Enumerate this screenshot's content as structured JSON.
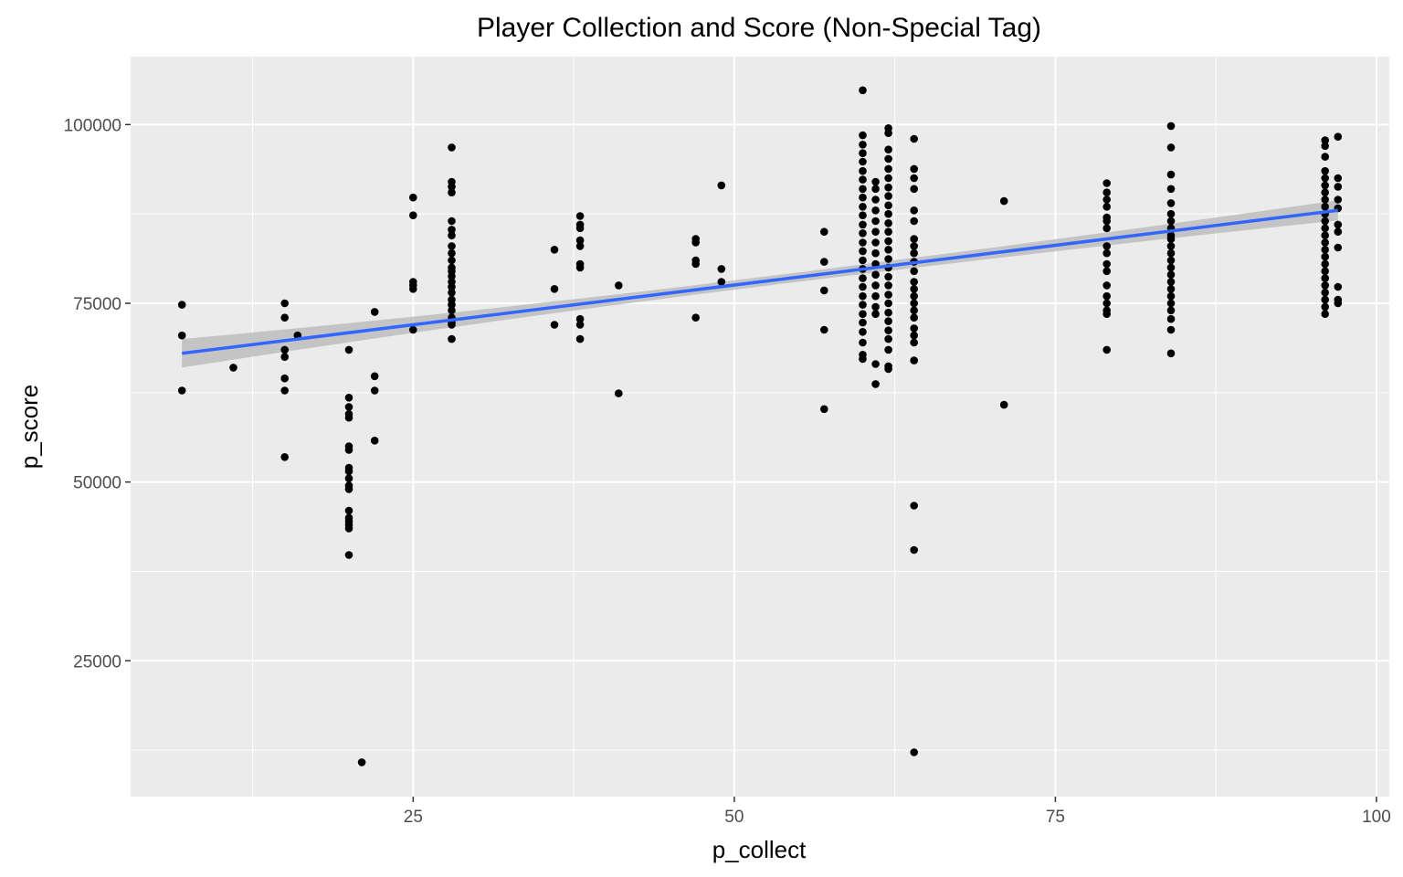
{
  "chart_data": {
    "type": "scatter",
    "title": "Player Collection and Score (Non-Special Tag)",
    "xlabel": "p_collect",
    "ylabel": "p_score",
    "xlim": [
      3,
      101
    ],
    "ylim": [
      6000,
      109500
    ],
    "x_ticks": [
      25,
      50,
      75,
      100
    ],
    "x_tick_labels": [
      "25",
      "50",
      "75",
      "100"
    ],
    "x_minor_ticks": [
      12.5,
      37.5,
      62.5,
      87.5
    ],
    "y_ticks": [
      25000,
      50000,
      75000,
      100000
    ],
    "y_tick_labels": [
      "25000",
      "50000",
      "75000",
      "100000"
    ],
    "y_minor_ticks": [
      12500,
      37500,
      62500,
      87500
    ],
    "grid": true,
    "panel_color": "#ebebeb",
    "grid_color": "#ffffff",
    "point_color": "#000000",
    "trend": {
      "method": "linear fit",
      "x": [
        7,
        97
      ],
      "y": [
        68000,
        88000
      ],
      "color": "#3366ff",
      "band_color": "#bdbdbd",
      "band_halfwidth": [
        2000,
        1400
      ]
    },
    "points": [
      [
        7,
        74800
      ],
      [
        7,
        70500
      ],
      [
        7,
        62800
      ],
      [
        11,
        66000
      ],
      [
        15,
        75000
      ],
      [
        15,
        73000
      ],
      [
        15,
        68500
      ],
      [
        15,
        67500
      ],
      [
        15,
        64500
      ],
      [
        15,
        62800
      ],
      [
        15,
        53500
      ],
      [
        16,
        70500
      ],
      [
        20,
        68500
      ],
      [
        20,
        61800
      ],
      [
        20,
        60500
      ],
      [
        20,
        59500
      ],
      [
        20,
        59000
      ],
      [
        20,
        55000
      ],
      [
        20,
        54500
      ],
      [
        20,
        52000
      ],
      [
        20,
        51500
      ],
      [
        20,
        50500
      ],
      [
        20,
        49500
      ],
      [
        20,
        49000
      ],
      [
        20,
        46000
      ],
      [
        20,
        45000
      ],
      [
        20,
        44500
      ],
      [
        20,
        44000
      ],
      [
        20,
        43500
      ],
      [
        20,
        39800
      ],
      [
        21,
        10800
      ],
      [
        22,
        73800
      ],
      [
        22,
        64800
      ],
      [
        22,
        62800
      ],
      [
        22,
        55800
      ],
      [
        25,
        89800
      ],
      [
        25,
        87300
      ],
      [
        25,
        78000
      ],
      [
        25,
        77500
      ],
      [
        25,
        77000
      ],
      [
        25,
        71300
      ],
      [
        28,
        96800
      ],
      [
        28,
        92000
      ],
      [
        28,
        91300
      ],
      [
        28,
        90500
      ],
      [
        28,
        86500
      ],
      [
        28,
        85300
      ],
      [
        28,
        84500
      ],
      [
        28,
        83000
      ],
      [
        28,
        82000
      ],
      [
        28,
        81000
      ],
      [
        28,
        80000
      ],
      [
        28,
        79500
      ],
      [
        28,
        78800
      ],
      [
        28,
        78000
      ],
      [
        28,
        77300
      ],
      [
        28,
        76500
      ],
      [
        28,
        75500
      ],
      [
        28,
        74800
      ],
      [
        28,
        74000
      ],
      [
        28,
        73000
      ],
      [
        28,
        72300
      ],
      [
        28,
        72000
      ],
      [
        28,
        70000
      ],
      [
        36,
        82500
      ],
      [
        36,
        77000
      ],
      [
        36,
        72000
      ],
      [
        38,
        87200
      ],
      [
        38,
        86000
      ],
      [
        38,
        85500
      ],
      [
        38,
        83800
      ],
      [
        38,
        83000
      ],
      [
        38,
        80500
      ],
      [
        38,
        80000
      ],
      [
        38,
        72800
      ],
      [
        38,
        72000
      ],
      [
        38,
        70000
      ],
      [
        41,
        77500
      ],
      [
        41,
        62400
      ],
      [
        47,
        84000
      ],
      [
        47,
        83500
      ],
      [
        47,
        81000
      ],
      [
        47,
        80500
      ],
      [
        47,
        73000
      ],
      [
        49,
        91500
      ],
      [
        49,
        79800
      ],
      [
        49,
        78000
      ],
      [
        57,
        85000
      ],
      [
        57,
        80800
      ],
      [
        57,
        76800
      ],
      [
        57,
        71300
      ],
      [
        57,
        60200
      ],
      [
        60,
        104800
      ],
      [
        60,
        98500
      ],
      [
        60,
        97200
      ],
      [
        60,
        96000
      ],
      [
        60,
        94800
      ],
      [
        60,
        93500
      ],
      [
        60,
        92300
      ],
      [
        60,
        91000
      ],
      [
        60,
        89800
      ],
      [
        60,
        88500
      ],
      [
        60,
        87300
      ],
      [
        60,
        86000
      ],
      [
        60,
        84800
      ],
      [
        60,
        83500
      ],
      [
        60,
        82300
      ],
      [
        60,
        81000
      ],
      [
        60,
        79800
      ],
      [
        60,
        78500
      ],
      [
        60,
        77300
      ],
      [
        60,
        76000
      ],
      [
        60,
        74800
      ],
      [
        60,
        73500
      ],
      [
        60,
        72300
      ],
      [
        60,
        71000
      ],
      [
        60,
        69500
      ],
      [
        60,
        67800
      ],
      [
        60,
        67200
      ],
      [
        61,
        92000
      ],
      [
        61,
        91000
      ],
      [
        61,
        89500
      ],
      [
        61,
        88000
      ],
      [
        61,
        86500
      ],
      [
        61,
        85000
      ],
      [
        61,
        83500
      ],
      [
        61,
        82000
      ],
      [
        61,
        80500
      ],
      [
        61,
        79000
      ],
      [
        61,
        77500
      ],
      [
        61,
        76000
      ],
      [
        61,
        74500
      ],
      [
        61,
        73500
      ],
      [
        61,
        66500
      ],
      [
        61,
        63700
      ],
      [
        62,
        99500
      ],
      [
        62,
        98800
      ],
      [
        62,
        96500
      ],
      [
        62,
        95200
      ],
      [
        62,
        93800
      ],
      [
        62,
        92500
      ],
      [
        62,
        91200
      ],
      [
        62,
        90000
      ],
      [
        62,
        88700
      ],
      [
        62,
        87500
      ],
      [
        62,
        86200
      ],
      [
        62,
        85000
      ],
      [
        62,
        83700
      ],
      [
        62,
        82500
      ],
      [
        62,
        81200
      ],
      [
        62,
        80000
      ],
      [
        62,
        78700
      ],
      [
        62,
        77500
      ],
      [
        62,
        76200
      ],
      [
        62,
        75000
      ],
      [
        62,
        73700
      ],
      [
        62,
        72500
      ],
      [
        62,
        71200
      ],
      [
        62,
        70000
      ],
      [
        62,
        68500
      ],
      [
        62,
        66200
      ],
      [
        62,
        65800
      ],
      [
        64,
        98000
      ],
      [
        64,
        93800
      ],
      [
        64,
        92500
      ],
      [
        64,
        91000
      ],
      [
        64,
        88000
      ],
      [
        64,
        86500
      ],
      [
        64,
        84000
      ],
      [
        64,
        83000
      ],
      [
        64,
        82000
      ],
      [
        64,
        80800
      ],
      [
        64,
        79500
      ],
      [
        64,
        78000
      ],
      [
        64,
        77000
      ],
      [
        64,
        76000
      ],
      [
        64,
        75000
      ],
      [
        64,
        74000
      ],
      [
        64,
        73000
      ],
      [
        64,
        71500
      ],
      [
        64,
        70500
      ],
      [
        64,
        69500
      ],
      [
        64,
        67000
      ],
      [
        64,
        46700
      ],
      [
        64,
        40500
      ],
      [
        64,
        12200
      ],
      [
        71,
        89300
      ],
      [
        71,
        60800
      ],
      [
        79,
        91800
      ],
      [
        79,
        90500
      ],
      [
        79,
        89500
      ],
      [
        79,
        88500
      ],
      [
        79,
        87000
      ],
      [
        79,
        86500
      ],
      [
        79,
        85500
      ],
      [
        79,
        83000
      ],
      [
        79,
        82000
      ],
      [
        79,
        80500
      ],
      [
        79,
        79500
      ],
      [
        79,
        77500
      ],
      [
        79,
        76000
      ],
      [
        79,
        75000
      ],
      [
        79,
        74000
      ],
      [
        79,
        73500
      ],
      [
        79,
        68500
      ],
      [
        84,
        99800
      ],
      [
        84,
        96800
      ],
      [
        84,
        93000
      ],
      [
        84,
        91000
      ],
      [
        84,
        89000
      ],
      [
        84,
        87500
      ],
      [
        84,
        86500
      ],
      [
        84,
        85500
      ],
      [
        84,
        84500
      ],
      [
        84,
        84000
      ],
      [
        84,
        83000
      ],
      [
        84,
        82000
      ],
      [
        84,
        81000
      ],
      [
        84,
        80000
      ],
      [
        84,
        79000
      ],
      [
        84,
        78000
      ],
      [
        84,
        77000
      ],
      [
        84,
        76000
      ],
      [
        84,
        75000
      ],
      [
        84,
        74000
      ],
      [
        84,
        72800
      ],
      [
        84,
        71300
      ],
      [
        84,
        68000
      ],
      [
        96,
        97800
      ],
      [
        96,
        97000
      ],
      [
        96,
        95500
      ],
      [
        96,
        93500
      ],
      [
        96,
        92500
      ],
      [
        96,
        91500
      ],
      [
        96,
        90500
      ],
      [
        96,
        89500
      ],
      [
        96,
        88500
      ],
      [
        96,
        87500
      ],
      [
        96,
        86500
      ],
      [
        96,
        85500
      ],
      [
        96,
        84500
      ],
      [
        96,
        83500
      ],
      [
        96,
        82500
      ],
      [
        96,
        81500
      ],
      [
        96,
        80500
      ],
      [
        96,
        79500
      ],
      [
        96,
        78500
      ],
      [
        96,
        77500
      ],
      [
        96,
        76500
      ],
      [
        96,
        75500
      ],
      [
        96,
        74500
      ],
      [
        96,
        73500
      ],
      [
        97,
        98300
      ],
      [
        97,
        92500
      ],
      [
        97,
        91300
      ],
      [
        97,
        89500
      ],
      [
        97,
        88300
      ],
      [
        97,
        86000
      ],
      [
        97,
        85000
      ],
      [
        97,
        82800
      ],
      [
        97,
        77300
      ],
      [
        97,
        75500
      ],
      [
        97,
        75000
      ]
    ]
  }
}
